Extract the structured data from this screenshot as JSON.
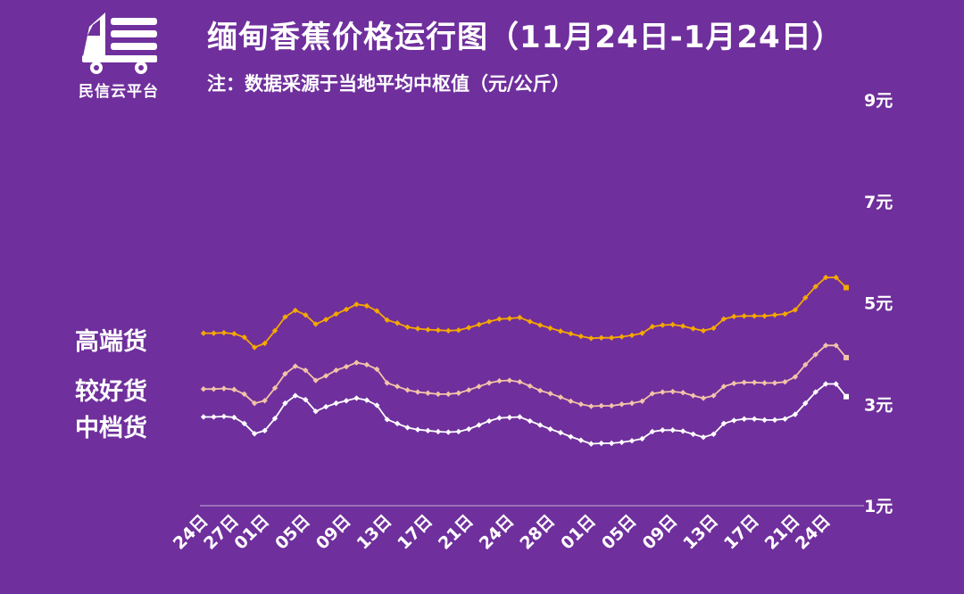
{
  "brand": {
    "name": "民信云平台",
    "logo_icon": "truck-logo-icon"
  },
  "header": {
    "title": "缅甸香蕉价格运行图（11月24日-1月24日）",
    "note": "注：数据采源于当地平均中枢值（元/公斤）"
  },
  "colors": {
    "background": "#6f2f9c",
    "high": "#f5a800",
    "good": "#f2c3a8",
    "mid": "#ffffff",
    "axis_line": "#b89ad0"
  },
  "chart_data": {
    "type": "line",
    "title": "缅甸香蕉价格运行图（11月24日-1月24日）",
    "ylabel": "元/公斤",
    "ylim": [
      1,
      9
    ],
    "yticks": [
      1,
      3,
      5,
      7,
      9
    ],
    "ytick_labels": [
      "1元",
      "3元",
      "5元",
      "7元",
      "9元"
    ],
    "y_axis_side": "right",
    "grid": false,
    "xtick_labels": [
      "24日",
      "27日",
      "01日",
      "05日",
      "09日",
      "13日",
      "17日",
      "21日",
      "24日",
      "28日",
      "01日",
      "05日",
      "09日",
      "13日",
      "17日",
      "21日",
      "24日"
    ],
    "xtick_index": [
      0,
      3,
      6,
      10,
      14,
      18,
      22,
      26,
      30,
      34,
      38,
      42,
      46,
      50,
      54,
      58,
      61
    ],
    "series": [
      {
        "name": "高端货",
        "color": "#f5a800",
        "values": [
          4.4,
          4.4,
          4.41,
          4.39,
          4.32,
          4.12,
          4.2,
          4.45,
          4.72,
          4.85,
          4.76,
          4.58,
          4.67,
          4.78,
          4.87,
          4.97,
          4.94,
          4.84,
          4.66,
          4.6,
          4.52,
          4.49,
          4.47,
          4.46,
          4.45,
          4.46,
          4.51,
          4.57,
          4.63,
          4.68,
          4.69,
          4.71,
          4.63,
          4.56,
          4.5,
          4.44,
          4.39,
          4.34,
          4.3,
          4.31,
          4.31,
          4.33,
          4.36,
          4.4,
          4.53,
          4.56,
          4.57,
          4.54,
          4.49,
          4.45,
          4.5,
          4.68,
          4.73,
          4.74,
          4.74,
          4.74,
          4.76,
          4.78,
          4.86,
          5.1,
          5.32,
          5.5,
          5.5,
          5.3
        ]
      },
      {
        "name": "较好货",
        "color": "#f2c3a8",
        "values": [
          3.3,
          3.3,
          3.31,
          3.29,
          3.2,
          3.02,
          3.07,
          3.32,
          3.6,
          3.75,
          3.67,
          3.47,
          3.56,
          3.67,
          3.74,
          3.82,
          3.78,
          3.69,
          3.42,
          3.35,
          3.28,
          3.24,
          3.22,
          3.2,
          3.2,
          3.22,
          3.28,
          3.35,
          3.42,
          3.46,
          3.47,
          3.44,
          3.36,
          3.27,
          3.21,
          3.14,
          3.06,
          3.0,
          2.96,
          2.97,
          2.97,
          3.0,
          3.02,
          3.06,
          3.21,
          3.24,
          3.25,
          3.23,
          3.17,
          3.12,
          3.17,
          3.35,
          3.41,
          3.43,
          3.43,
          3.42,
          3.42,
          3.44,
          3.54,
          3.78,
          3.98,
          4.16,
          4.16,
          3.92
        ]
      },
      {
        "name": "中档货",
        "color": "#ffffff",
        "values": [
          2.75,
          2.75,
          2.76,
          2.74,
          2.62,
          2.42,
          2.48,
          2.72,
          3.02,
          3.17,
          3.09,
          2.86,
          2.95,
          3.02,
          3.07,
          3.12,
          3.08,
          2.98,
          2.7,
          2.62,
          2.54,
          2.5,
          2.48,
          2.46,
          2.45,
          2.46,
          2.51,
          2.59,
          2.67,
          2.73,
          2.74,
          2.75,
          2.67,
          2.59,
          2.51,
          2.44,
          2.36,
          2.29,
          2.22,
          2.23,
          2.23,
          2.25,
          2.28,
          2.32,
          2.46,
          2.49,
          2.49,
          2.47,
          2.41,
          2.35,
          2.41,
          2.62,
          2.68,
          2.71,
          2.71,
          2.69,
          2.69,
          2.71,
          2.8,
          3.02,
          3.24,
          3.4,
          3.4,
          3.15
        ]
      }
    ]
  }
}
